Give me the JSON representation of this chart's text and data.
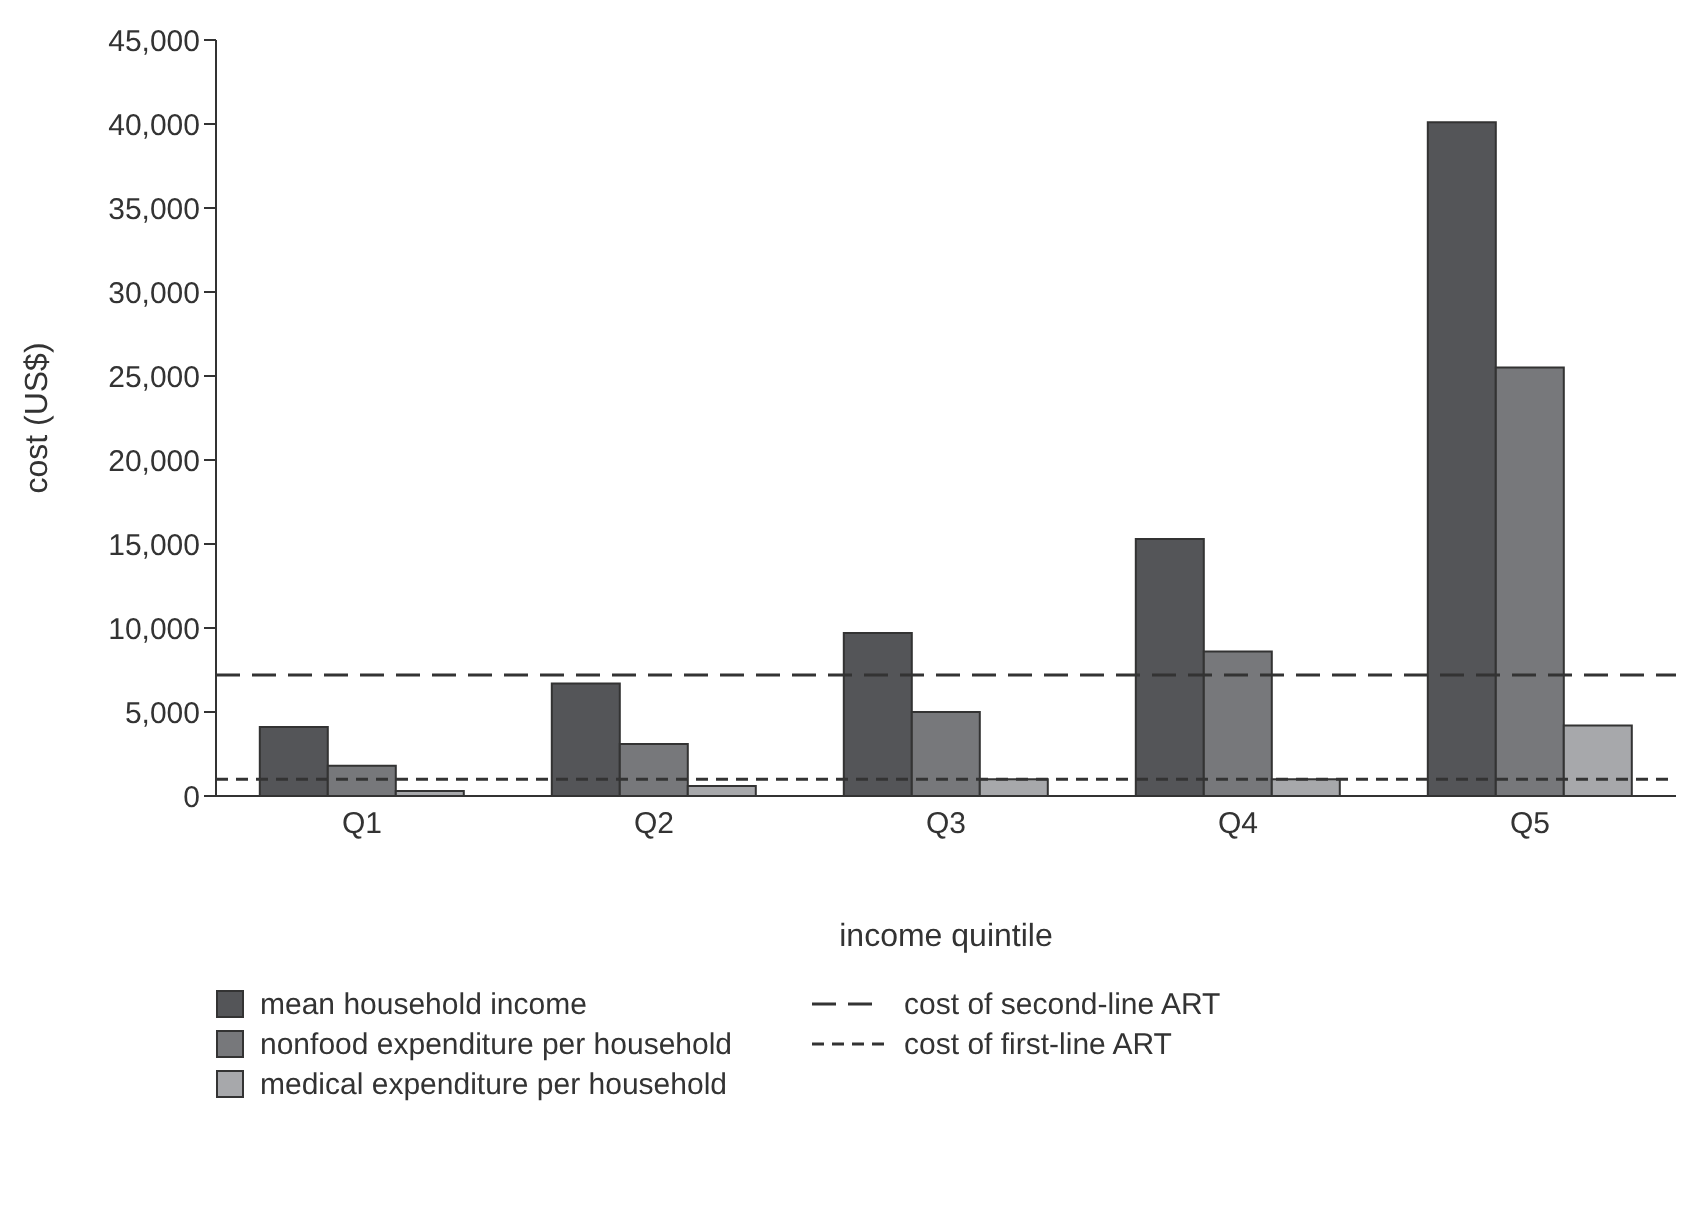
{
  "chart_data": {
    "type": "bar",
    "xlabel": "income quintile",
    "ylabel": "cost (US$)",
    "categories": [
      "Q1",
      "Q2",
      "Q3",
      "Q4",
      "Q5"
    ],
    "series": [
      {
        "name": "mean household income",
        "color": "#545558",
        "values": [
          4100,
          6700,
          9700,
          15300,
          40100
        ]
      },
      {
        "name": "nonfood expenditure per household",
        "color": "#77787b",
        "values": [
          1800,
          3100,
          5000,
          8600,
          25500
        ]
      },
      {
        "name": "medical expenditure per household",
        "color": "#a7a8ab",
        "values": [
          300,
          600,
          1000,
          1000,
          4200
        ]
      }
    ],
    "ylim": [
      0,
      45000
    ],
    "yticks": [
      0,
      {
        "value": 5000,
        "label": "5,000"
      },
      {
        "value": 10000,
        "label": "10,000"
      },
      {
        "value": 15000,
        "label": "15,000"
      },
      {
        "value": 20000,
        "label": "20,000"
      },
      {
        "value": 25000,
        "label": "25,000"
      },
      {
        "value": 30000,
        "label": "30,000"
      },
      {
        "value": 35000,
        "label": "35,000"
      },
      {
        "value": 40000,
        "label": "40,000"
      },
      {
        "value": 45000,
        "label": "45,000"
      }
    ],
    "ref_lines": [
      {
        "axis": "y",
        "value": 7200,
        "label": "cost of second-line ART",
        "color": "#333333",
        "line_style": "dashed"
      },
      {
        "axis": "y",
        "value": 1000,
        "label": "cost of first-line ART",
        "color": "#333333",
        "line_style": "dotted"
      }
    ],
    "grid": false,
    "legend": "bottom"
  }
}
